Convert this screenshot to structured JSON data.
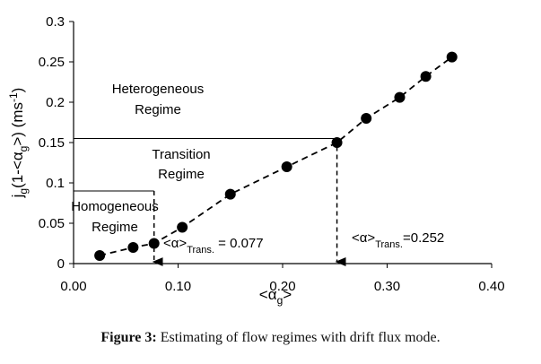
{
  "chart_data": {
    "type": "scatter",
    "xlabel": {
      "main": "<α",
      "sub": "g",
      "close": ">"
    },
    "ylabel": {
      "a": "j",
      "a_sub": "g",
      "b": "(1-<α",
      "b_sub": "g",
      "c": ">) (ms",
      "c_sup": "-1",
      "d": ")"
    },
    "xlim": [
      0,
      0.4
    ],
    "ylim": [
      0,
      0.3
    ],
    "x_ticks": [
      0.0,
      0.1,
      0.2,
      0.3,
      0.4
    ],
    "x_tick_labels": [
      "0.00",
      "0.10",
      "0.20",
      "0.30",
      "0.40"
    ],
    "y_ticks": [
      0,
      0.05,
      0.1,
      0.15,
      0.2,
      0.25,
      0.3
    ],
    "y_tick_labels": [
      "0",
      "0.05",
      "0.1",
      "0.15",
      "0.2",
      "0.25",
      "0.3"
    ],
    "grid": false,
    "series": [
      {
        "x": [
          0.025,
          0.057,
          0.077,
          0.104,
          0.15,
          0.204,
          0.252,
          0.28,
          0.312,
          0.337,
          0.362
        ],
        "y": [
          0.01,
          0.02,
          0.025,
          0.045,
          0.086,
          0.12,
          0.15,
          0.18,
          0.206,
          0.232,
          0.256
        ],
        "color": "#000000",
        "line_style": "dashed"
      }
    ],
    "transitions": [
      {
        "x": 0.077,
        "y": 0.025,
        "y_top": 0.09,
        "label_main": "<α>",
        "label_sub": "Trans.",
        "label_rest": " = 0.077"
      },
      {
        "x": 0.252,
        "y": 0.15,
        "y_top": 0.155,
        "label_main": "<α>",
        "label_sub": "Trans.",
        "label_rest": "=0.252"
      }
    ],
    "regions": [
      {
        "lines": [
          "Heterogeneous",
          "Regime"
        ]
      },
      {
        "lines": [
          "Transition",
          "Regime"
        ]
      },
      {
        "lines": [
          "Homogeneous",
          "Regime"
        ]
      }
    ]
  },
  "caption": {
    "label": "Figure 3:",
    "text": " Estimating of flow regimes with drift flux mode."
  }
}
